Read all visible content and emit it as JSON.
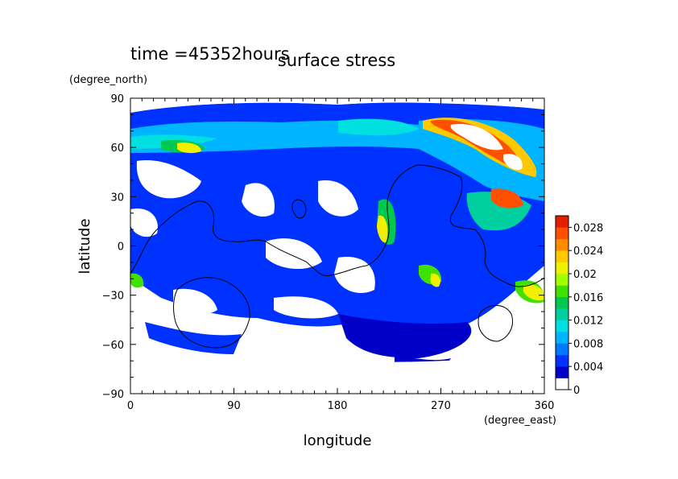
{
  "chart_data": {
    "type": "heatmap",
    "time_label": "time =45352hours",
    "title": "surface stress",
    "xlabel": "longitude",
    "ylabel": "latitude",
    "x_unit": "(degree_east)",
    "y_unit": "(degree_north)",
    "xlim": [
      0,
      360
    ],
    "ylim": [
      -90,
      90
    ],
    "x_ticks": [
      0,
      90,
      180,
      270,
      360
    ],
    "x_tick_labels": [
      "0",
      "90",
      "180",
      "270",
      "360"
    ],
    "y_ticks": [
      90,
      60,
      30,
      0,
      -30,
      -60,
      -90
    ],
    "y_tick_labels": [
      "90",
      "60",
      "30",
      "0",
      "−30",
      "−60",
      "−90"
    ],
    "colorbar": {
      "range": [
        0,
        0.03
      ],
      "tick_values": [
        0,
        0.004,
        0.008,
        0.012,
        0.016,
        0.02,
        0.024,
        0.028
      ],
      "tick_labels": [
        "0",
        "0.004",
        "0.008",
        "0.012",
        "0.016",
        "0.02",
        "0.024",
        "0.028"
      ],
      "colors": [
        "#ffffff",
        "#0000c8",
        "#0032ff",
        "#0078ff",
        "#00b4ff",
        "#00e0e0",
        "#00d0a0",
        "#00c850",
        "#40e000",
        "#a0ff00",
        "#f0f000",
        "#ffc800",
        "#ff8c00",
        "#ff5000",
        "#e61e00"
      ]
    },
    "grid": false,
    "legend": "right",
    "description_regions": [
      {
        "lon": 300,
        "lat": 65,
        "value": 0.028
      },
      {
        "lon": 270,
        "lat": 70,
        "value": 0.02
      },
      {
        "lon": 330,
        "lat": 40,
        "value": 0.024
      },
      {
        "lon": 330,
        "lat": 20,
        "value": 0.024
      },
      {
        "lon": 215,
        "lat": 10,
        "value": 0.02
      },
      {
        "lon": 50,
        "lat": 60,
        "value": 0.018
      },
      {
        "lon": 350,
        "lat": -20,
        "value": 0.02
      },
      {
        "lon": 270,
        "lat": -20,
        "value": 0.014
      },
      {
        "lon": 150,
        "lat": 25,
        "value": 0.008
      }
    ]
  }
}
